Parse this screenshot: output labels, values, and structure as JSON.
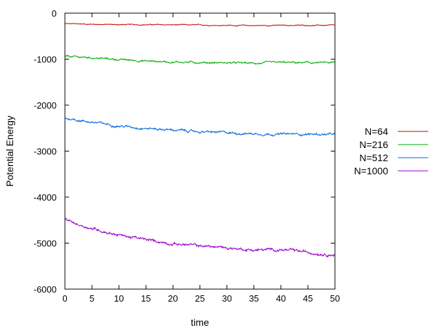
{
  "chart_data": {
    "type": "line",
    "title": "",
    "xlabel": "time",
    "ylabel": "Potential Energy",
    "xlim": [
      0,
      50
    ],
    "ylim": [
      -6000,
      0
    ],
    "xticks": [
      0,
      5,
      10,
      15,
      20,
      25,
      30,
      35,
      40,
      45,
      50
    ],
    "yticks": [
      0,
      -1000,
      -2000,
      -3000,
      -4000,
      -5000,
      -6000
    ],
    "grid": false,
    "legend_position": "right",
    "series": [
      {
        "name": "N=64",
        "color": "#cc0000",
        "x": [
          0,
          5,
          10,
          15,
          20,
          25,
          30,
          35,
          40,
          45,
          50
        ],
        "y": [
          -230,
          -240,
          -250,
          -250,
          -255,
          -260,
          -265,
          -270,
          -265,
          -265,
          -265
        ],
        "noise": 10
      },
      {
        "name": "N=216",
        "color": "#00aa00",
        "x": [
          0,
          5,
          10,
          15,
          20,
          25,
          30,
          35,
          40,
          45,
          50
        ],
        "y": [
          -940,
          -970,
          -1010,
          -1040,
          -1060,
          -1070,
          -1080,
          -1090,
          -1075,
          -1080,
          -1080
        ],
        "noise": 20
      },
      {
        "name": "N=512",
        "color": "#0066dd",
        "x": [
          0,
          5,
          10,
          15,
          20,
          25,
          30,
          35,
          40,
          45,
          50
        ],
        "y": [
          -2280,
          -2370,
          -2450,
          -2500,
          -2540,
          -2580,
          -2600,
          -2620,
          -2630,
          -2630,
          -2640
        ],
        "noise": 25
      },
      {
        "name": "N=1000",
        "color": "#9900cc",
        "x": [
          0,
          2,
          5,
          10,
          15,
          20,
          25,
          30,
          35,
          40,
          45,
          50
        ],
        "y": [
          -4480,
          -4580,
          -4680,
          -4820,
          -4930,
          -5010,
          -5060,
          -5100,
          -5150,
          -5140,
          -5200,
          -5250
        ],
        "noise": 30
      }
    ]
  }
}
